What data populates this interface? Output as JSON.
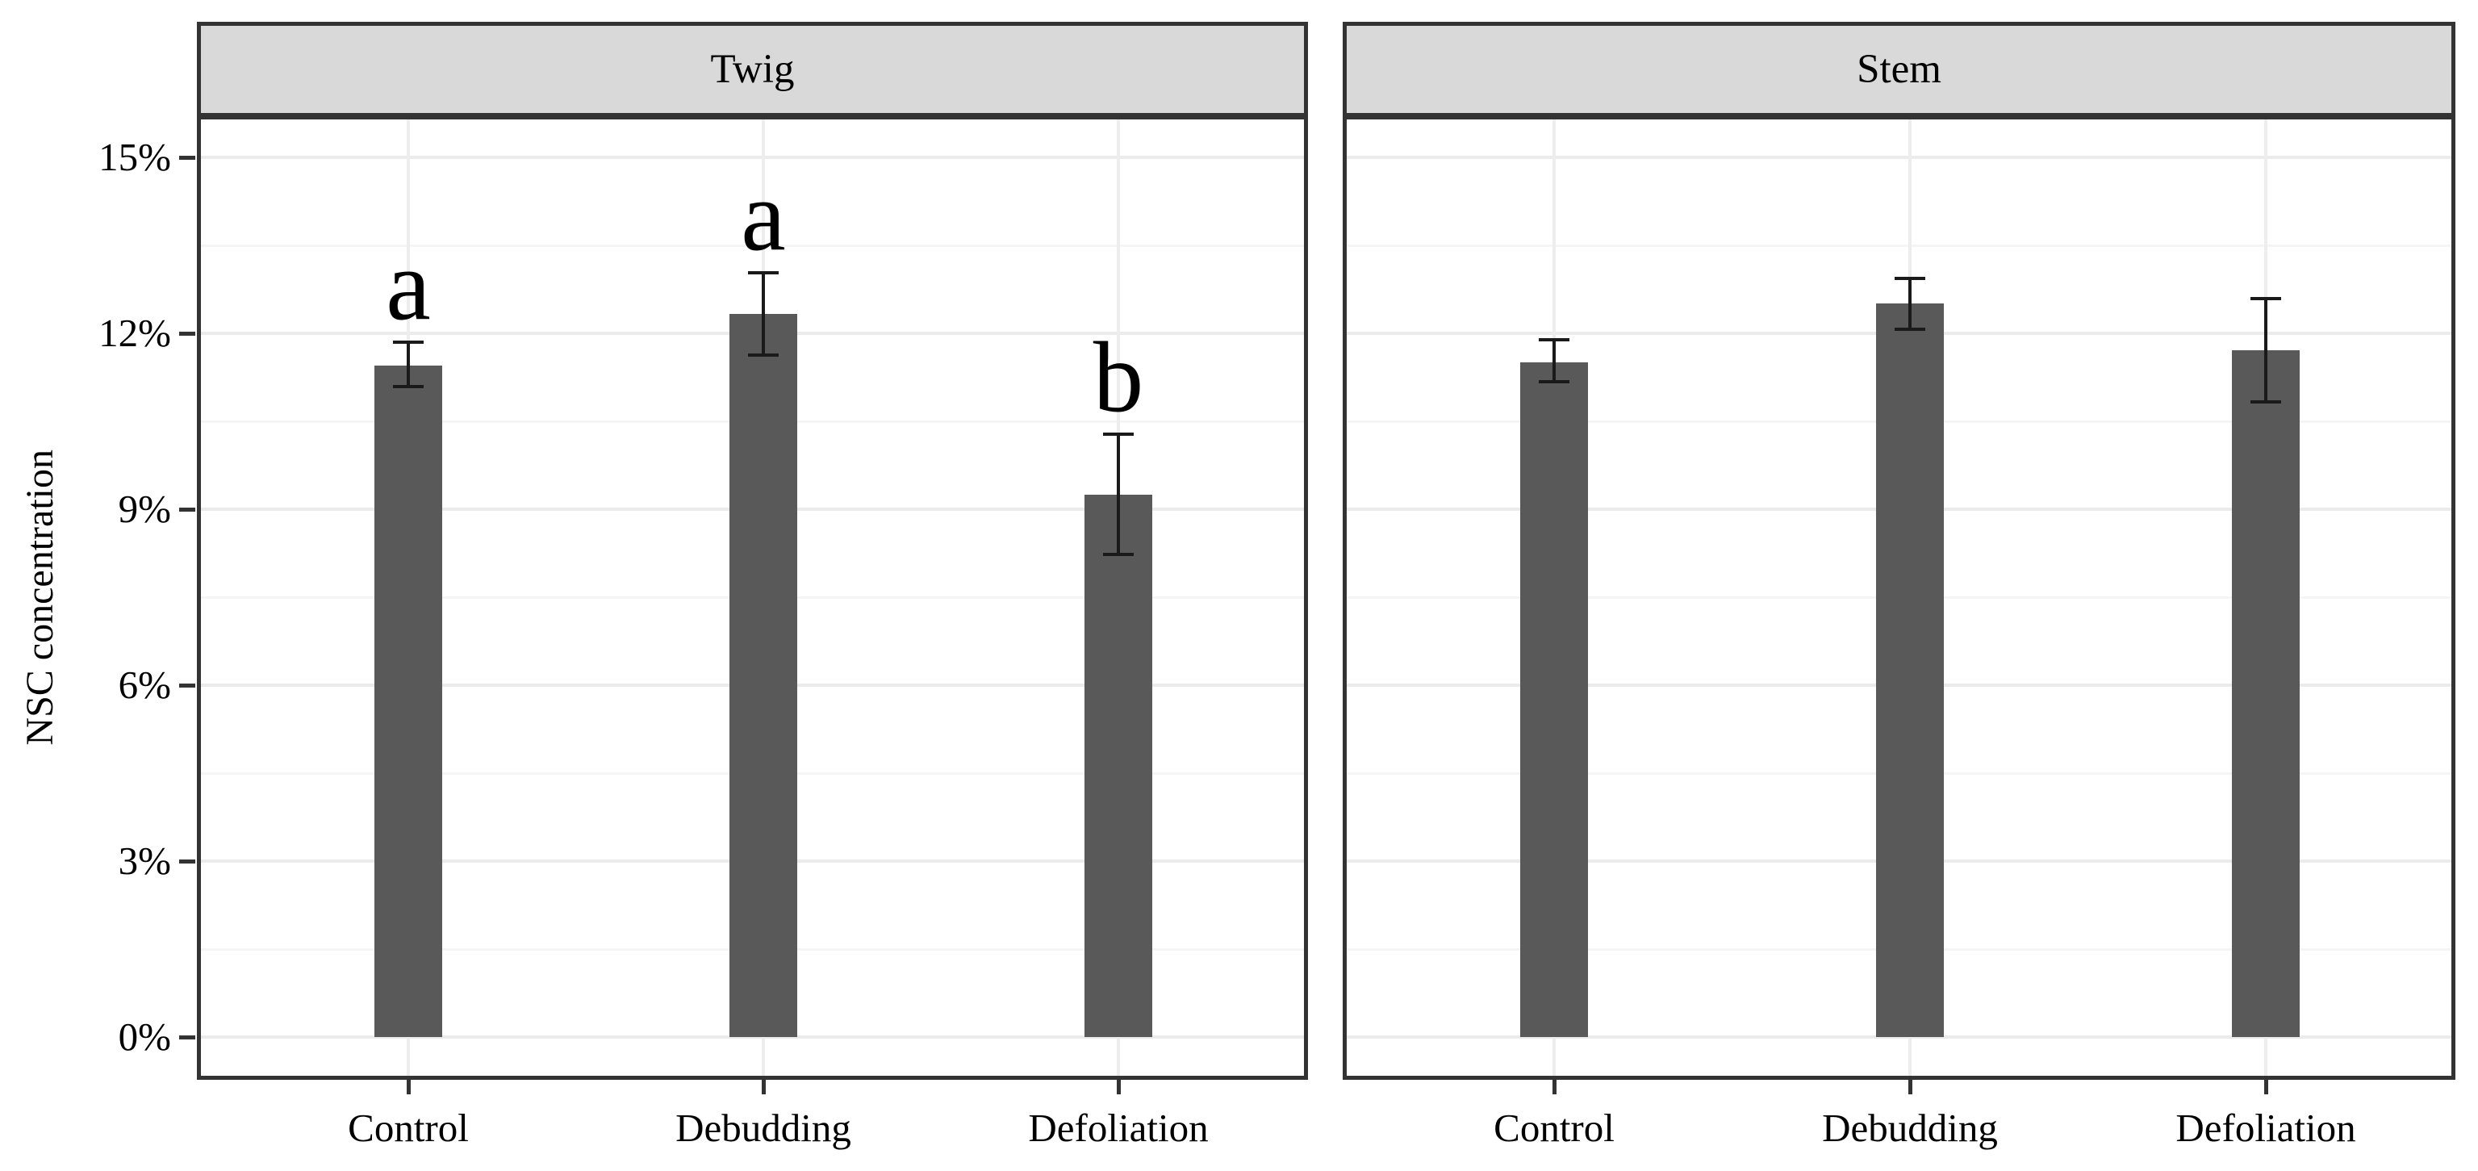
{
  "chart_data": {
    "type": "bar",
    "title": "",
    "ylabel": "NSC concentration",
    "xlabel": "",
    "units": "percent",
    "legend": "none",
    "grid": "horizontal major+minor, vertical at category centers",
    "ylim": [
      -0.66,
      15.64
    ],
    "categories": [
      "Control",
      "Debudding",
      "Defoliation"
    ],
    "y_ticks": [
      {
        "label": "0%",
        "value": 0
      },
      {
        "label": "3%",
        "value": 3
      },
      {
        "label": "6%",
        "value": 6
      },
      {
        "label": "9%",
        "value": 9
      },
      {
        "label": "12%",
        "value": 12
      },
      {
        "label": "15%",
        "value": 15
      }
    ],
    "y_minor_ticks": [
      1.5,
      4.5,
      7.5,
      10.5,
      13.5
    ],
    "facets": [
      {
        "label": "Twig",
        "series": [
          {
            "category": "Control",
            "mean": 11.45,
            "err_low": 11.08,
            "err_high": 11.84,
            "sig_letter": "a"
          },
          {
            "category": "Debudding",
            "mean": 12.32,
            "err_low": 11.62,
            "err_high": 13.02,
            "sig_letter": "a"
          },
          {
            "category": "Defoliation",
            "mean": 9.25,
            "err_low": 8.22,
            "err_high": 10.28,
            "sig_letter": "b"
          }
        ]
      },
      {
        "label": "Stem",
        "series": [
          {
            "category": "Control",
            "mean": 11.5,
            "err_low": 11.17,
            "err_high": 11.88,
            "sig_letter": ""
          },
          {
            "category": "Debudding",
            "mean": 12.5,
            "err_low": 12.07,
            "err_high": 12.93,
            "sig_letter": ""
          },
          {
            "category": "Defoliation",
            "mean": 11.7,
            "err_low": 10.82,
            "err_high": 12.59,
            "sig_letter": ""
          }
        ]
      }
    ]
  },
  "colors": {
    "bar_fill": "#595959",
    "error_bar": "#1a1a1a",
    "panel_border": "#333333",
    "header_fill": "#d9d9d9",
    "grid_major": "#ebebeb",
    "grid_minor": "#f5f5f5",
    "grid_vertical": "#ededed",
    "tick_mark": "#333333",
    "text": "#000000",
    "background": "#ffffff"
  }
}
